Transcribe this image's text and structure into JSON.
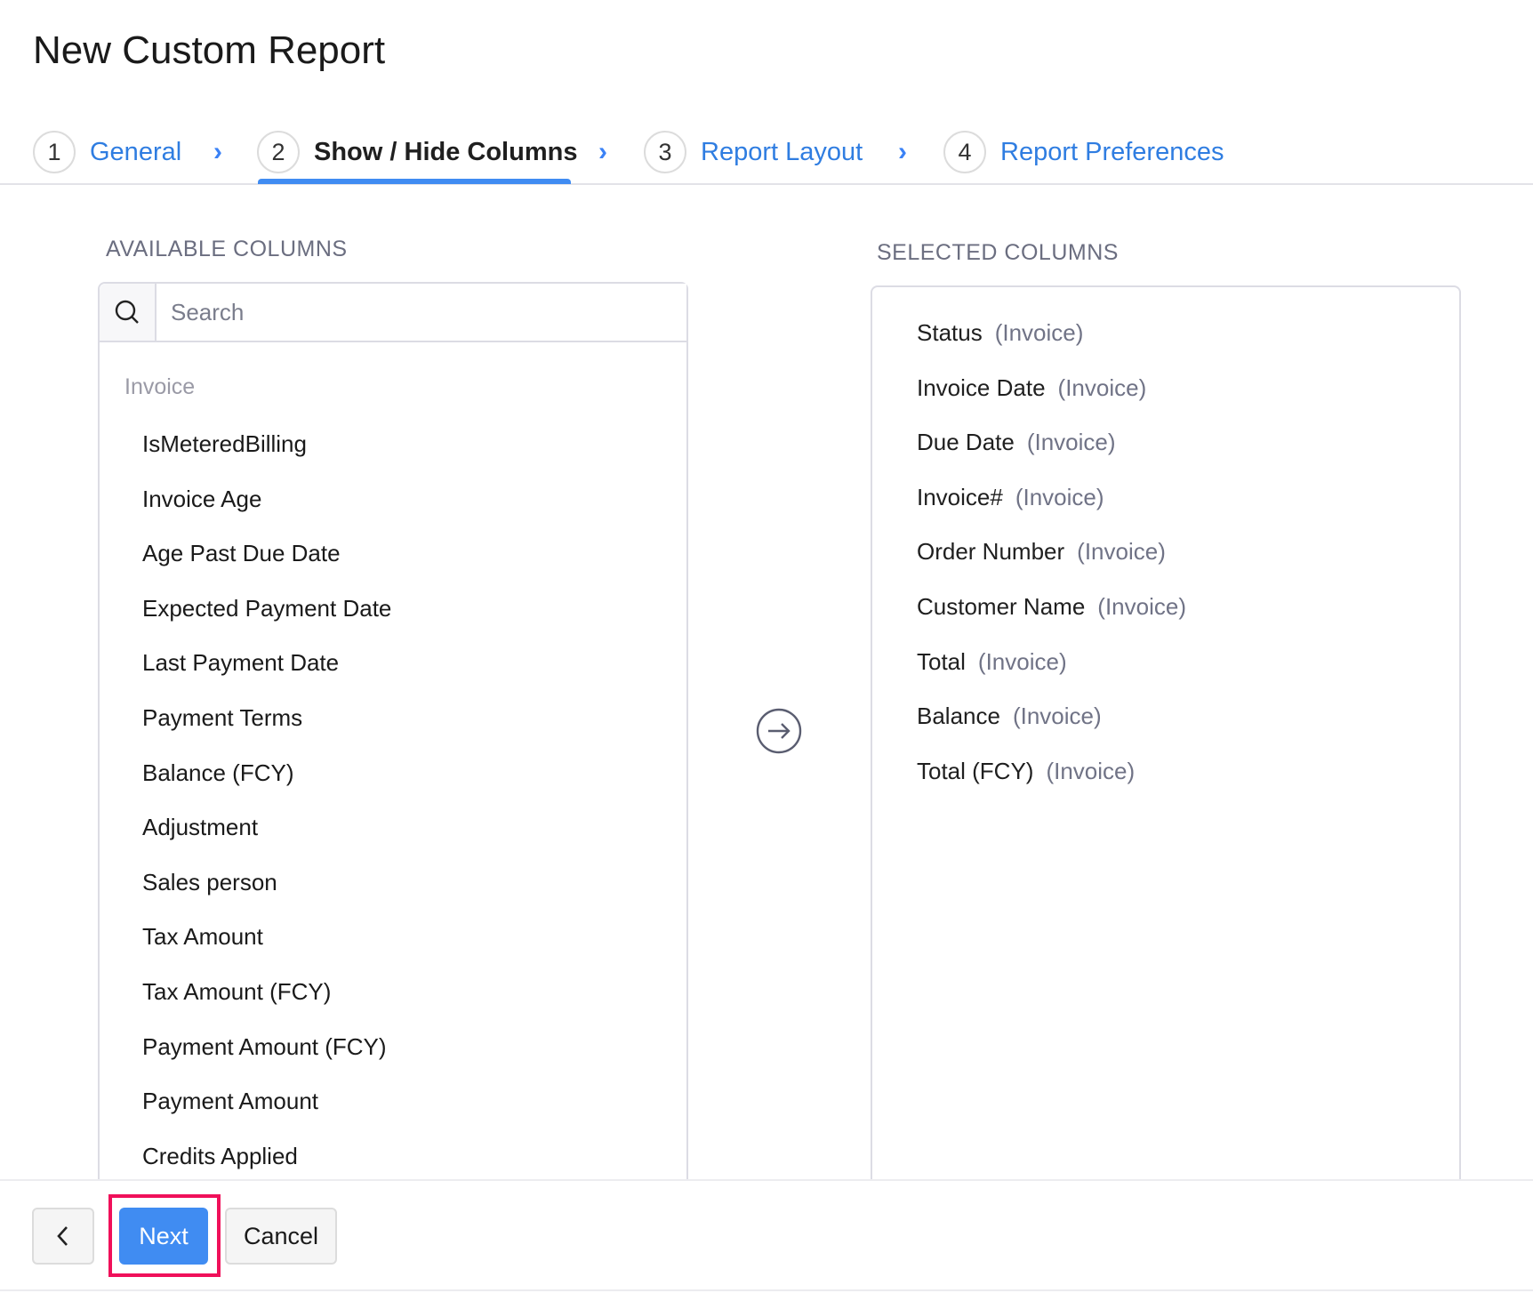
{
  "title": "New Custom Report",
  "steps": [
    {
      "num": "1",
      "label": "General"
    },
    {
      "num": "2",
      "label": "Show / Hide Columns",
      "active": true
    },
    {
      "num": "3",
      "label": "Report Layout"
    },
    {
      "num": "4",
      "label": "Report Preferences"
    }
  ],
  "available": {
    "heading": "AVAILABLE COLUMNS",
    "search_placeholder": "Search",
    "group": "Invoice",
    "items": [
      "IsMeteredBilling",
      "Invoice Age",
      "Age Past Due Date",
      "Expected Payment Date",
      "Last Payment Date",
      "Payment Terms",
      "Balance (FCY)",
      "Adjustment",
      "Sales person",
      "Tax Amount",
      "Tax Amount (FCY)",
      "Payment Amount (FCY)",
      "Payment Amount",
      "Credits Applied"
    ]
  },
  "selected": {
    "heading": "SELECTED COLUMNS",
    "items": [
      {
        "name": "Status",
        "entity": "(Invoice)"
      },
      {
        "name": "Invoice Date",
        "entity": "(Invoice)"
      },
      {
        "name": "Due Date",
        "entity": "(Invoice)"
      },
      {
        "name": "Invoice#",
        "entity": "(Invoice)"
      },
      {
        "name": "Order Number",
        "entity": "(Invoice)"
      },
      {
        "name": "Customer Name",
        "entity": "(Invoice)"
      },
      {
        "name": "Total",
        "entity": "(Invoice)"
      },
      {
        "name": "Balance",
        "entity": "(Invoice)"
      },
      {
        "name": "Total (FCY)",
        "entity": "(Invoice)"
      }
    ]
  },
  "footer": {
    "back_icon": "chevron-left-icon",
    "next": "Next",
    "cancel": "Cancel"
  },
  "colors": {
    "accent": "#408cf2",
    "highlight": "#f0105a",
    "link": "#2f7de1"
  }
}
